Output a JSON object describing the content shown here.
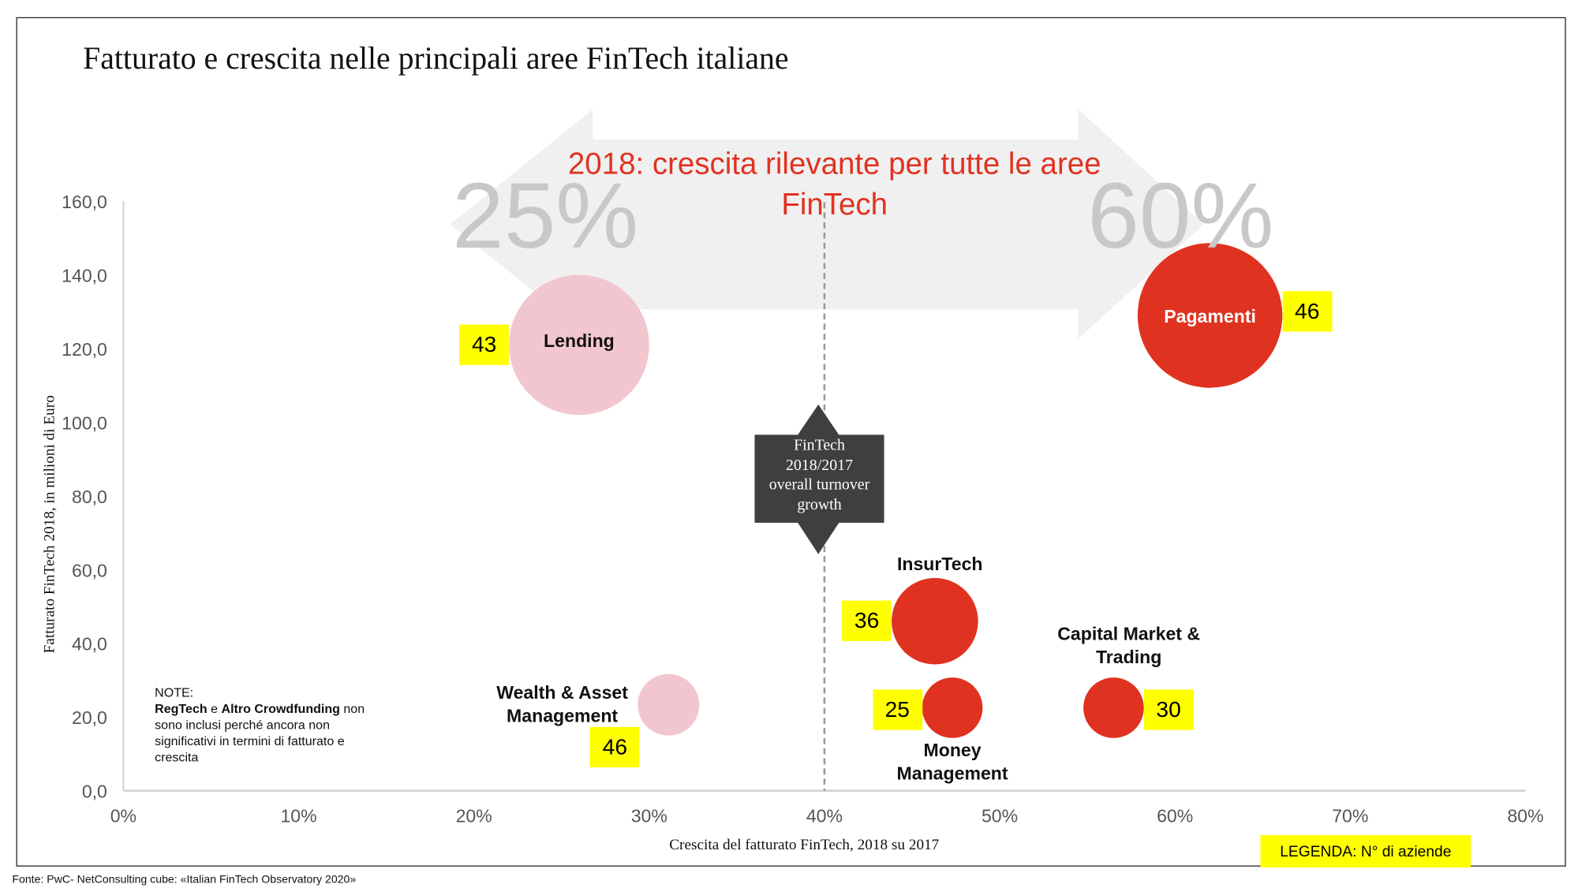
{
  "title": "Fatturato e crescita nelle principali aree FinTech italiane",
  "headline": "2018: crescita rilevante per tutte le aree FinTech",
  "arrow_left_label": "25%",
  "arrow_right_label": "60%",
  "callout": {
    "line1": "FinTech",
    "line2": "2018/2017",
    "line3": "overall turnover",
    "line4": "growth"
  },
  "note": {
    "heading": "NOTE:",
    "bold1": "RegTech",
    "mid": " e ",
    "bold2": "Altro Crowdfunding",
    "rest": " non sono inclusi perché ancora non significativi in termini di fatturato e crescita"
  },
  "legend": "LEGENDA: N° di aziende",
  "source": "Fonte: PwC- NetConsulting cube: «Italian FinTech Observatory 2020»",
  "colors": {
    "below_avg": "#f2c6cf",
    "above_avg": "#e03220",
    "count_badge": "#ffff00",
    "arrow": "#f0f0f0"
  },
  "chart_data": {
    "type": "scatter",
    "subtype": "bubble",
    "xlabel": "Crescita del fatturato FinTech, 2018 su 2017",
    "ylabel": "Fatturato FinTech 2018, in milioni di Euro",
    "xlim": [
      0,
      80
    ],
    "ylim": [
      0,
      160
    ],
    "x_ticks": [
      "0%",
      "10%",
      "20%",
      "30%",
      "40%",
      "50%",
      "60%",
      "70%",
      "80%"
    ],
    "y_ticks": [
      "0,0",
      "20,0",
      "40,0",
      "60,0",
      "80,0",
      "100,0",
      "120,0",
      "140,0",
      "160,0"
    ],
    "reference_line_x": 40,
    "grid": false,
    "legend_position": "bottom-right",
    "points": [
      {
        "label": "Lending",
        "x": 26,
        "y": 121,
        "companies": "43"
      },
      {
        "label": "Pagamenti",
        "x": 62,
        "y": 129,
        "companies": "46"
      },
      {
        "label": "InsurTech",
        "x": 46.3,
        "y": 46,
        "companies": "36"
      },
      {
        "label": "Money Management",
        "x": 47.3,
        "y": 22.5,
        "companies": "25"
      },
      {
        "label": "Capital Market & Trading",
        "x": 56.5,
        "y": 22.5,
        "companies": "30"
      },
      {
        "label": "Wealth & Asset Management",
        "x": 31.1,
        "y": 23.3,
        "companies": "46"
      }
    ]
  }
}
